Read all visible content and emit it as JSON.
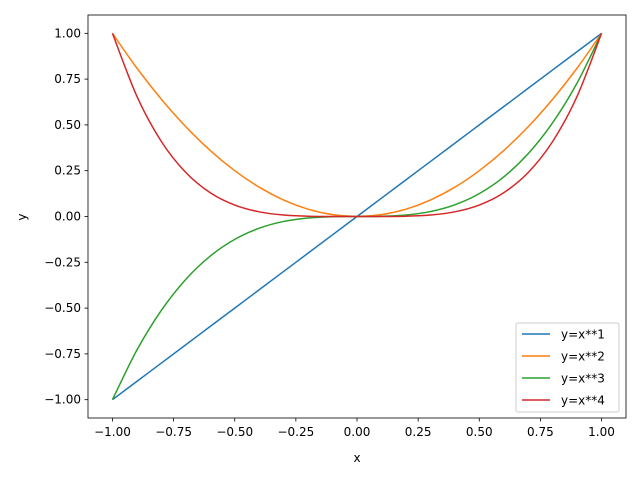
{
  "chart_data": {
    "type": "line",
    "title": "",
    "xlabel": "x",
    "ylabel": "y",
    "xlim": [
      -1.1,
      1.1
    ],
    "ylim": [
      -1.1,
      1.1
    ],
    "x_ticks": [
      -1.0,
      -0.75,
      -0.5,
      -0.25,
      0.0,
      0.25,
      0.5,
      0.75,
      1.0
    ],
    "y_ticks": [
      -1.0,
      -0.75,
      -0.5,
      -0.25,
      0.0,
      0.25,
      0.5,
      0.75,
      1.0
    ],
    "x_tick_labels": [
      "−1.00",
      "−0.75",
      "−0.50",
      "−0.25",
      "0.00",
      "0.25",
      "0.50",
      "0.75",
      "1.00"
    ],
    "y_tick_labels": [
      "−1.00",
      "−0.75",
      "−0.50",
      "−0.25",
      "0.00",
      "0.25",
      "0.50",
      "0.75",
      "1.00"
    ],
    "grid": false,
    "legend_position": "lower-right",
    "x": [
      -1.0,
      -0.9,
      -0.8,
      -0.7,
      -0.6,
      -0.5,
      -0.4,
      -0.3,
      -0.2,
      -0.1,
      0.0,
      0.1,
      0.2,
      0.3,
      0.4,
      0.5,
      0.6,
      0.7,
      0.8,
      0.9,
      1.0
    ],
    "series": [
      {
        "name": "y=x**1",
        "color": "#1f77b4",
        "values": [
          -1.0,
          -0.9,
          -0.8,
          -0.7,
          -0.6,
          -0.5,
          -0.4,
          -0.3,
          -0.2,
          -0.1,
          0.0,
          0.1,
          0.2,
          0.3,
          0.4,
          0.5,
          0.6,
          0.7,
          0.8,
          0.9,
          1.0
        ]
      },
      {
        "name": "y=x**2",
        "color": "#ff7f0e",
        "values": [
          1.0,
          0.81,
          0.64,
          0.49,
          0.36,
          0.25,
          0.16,
          0.09,
          0.04,
          0.01,
          0.0,
          0.01,
          0.04,
          0.09,
          0.16,
          0.25,
          0.36,
          0.49,
          0.64,
          0.81,
          1.0
        ]
      },
      {
        "name": "y=x**3",
        "color": "#2ca02c",
        "values": [
          -1.0,
          -0.729,
          -0.512,
          -0.343,
          -0.216,
          -0.125,
          -0.064,
          -0.027,
          -0.008,
          -0.001,
          0.0,
          0.001,
          0.008,
          0.027,
          0.064,
          0.125,
          0.216,
          0.343,
          0.512,
          0.729,
          1.0
        ]
      },
      {
        "name": "y=x**4",
        "color": "#d62728",
        "values": [
          1.0,
          0.6561,
          0.4096,
          0.2401,
          0.1296,
          0.0625,
          0.0256,
          0.0081,
          0.0016,
          0.0001,
          0.0,
          0.0001,
          0.0016,
          0.0081,
          0.0256,
          0.0625,
          0.1296,
          0.2401,
          0.4096,
          0.6561,
          1.0
        ]
      }
    ]
  }
}
